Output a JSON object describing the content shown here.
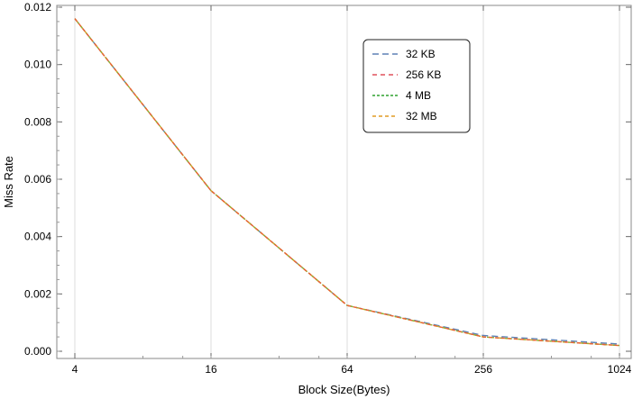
{
  "chart_data": {
    "type": "line",
    "x_scale": "log2",
    "categories": [
      "4",
      "16",
      "64",
      "256",
      "1024"
    ],
    "x": [
      4,
      16,
      64,
      256,
      1024
    ],
    "xlabel": "Block Size(Bytes)",
    "ylabel": "Miss Rate",
    "ylim": [
      0,
      0.012
    ],
    "yticks": [
      "0.000",
      "0.002",
      "0.004",
      "0.006",
      "0.008",
      "0.010",
      "0.012"
    ],
    "grid": "vertical",
    "legend_position": "top-center",
    "series": [
      {
        "name": "32 KB",
        "values": [
          0.0116,
          0.0056,
          0.0016,
          0.00055,
          0.00025
        ],
        "color": "#5e81b5"
      },
      {
        "name": "256 KB",
        "values": [
          0.0116,
          0.0056,
          0.0016,
          0.0005,
          0.0002
        ],
        "color": "#e19c24"
      },
      {
        "name": "4 MB",
        "values": [
          0.0116,
          0.0056,
          0.0016,
          0.0005,
          0.0002
        ],
        "color": "#8fb032"
      },
      {
        "name": "32 MB",
        "values": [
          0.0116,
          0.0056,
          0.0016,
          0.0005,
          0.0002
        ],
        "color": "#eb6235"
      }
    ]
  }
}
